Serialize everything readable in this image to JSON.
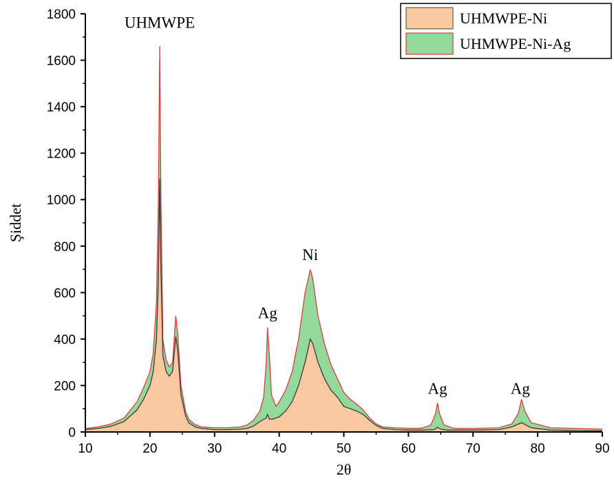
{
  "chart_data": {
    "type": "area",
    "xlabel": "2θ",
    "ylabel": "Şiddet",
    "xlim": [
      10,
      90
    ],
    "ylim": [
      0,
      1800
    ],
    "xticks": [
      10,
      20,
      30,
      40,
      50,
      60,
      70,
      80,
      90
    ],
    "yticks": [
      0,
      200,
      400,
      600,
      800,
      1000,
      1200,
      1400,
      1600,
      1800
    ],
    "legend_position": "top-right",
    "series": [
      {
        "name": "UHMWPE-Ni",
        "fill_color": "#f8c9a0",
        "line_color": "#3a3a3a",
        "x": [
          10,
          12,
          14,
          16,
          17,
          18,
          19,
          20,
          20.5,
          21,
          21.3,
          21.5,
          21.7,
          22,
          22.5,
          23,
          23.5,
          24,
          24.3,
          24.8,
          25.5,
          26,
          27,
          28,
          30,
          32,
          34,
          35,
          36,
          37,
          38,
          38.2,
          38.5,
          39,
          40,
          41,
          42,
          43,
          44,
          44.5,
          44.8,
          45.2,
          46,
          47,
          48,
          49,
          50,
          51,
          52,
          53,
          54,
          55,
          56,
          58,
          60,
          62,
          64,
          64.5,
          65,
          66,
          70,
          74,
          76,
          77.5,
          79,
          82,
          86,
          90
        ],
        "y": [
          10,
          15,
          25,
          45,
          70,
          95,
          140,
          200,
          260,
          400,
          650,
          1090,
          700,
          330,
          260,
          240,
          260,
          410,
          350,
          160,
          70,
          40,
          22,
          15,
          10,
          10,
          12,
          15,
          25,
          45,
          60,
          75,
          55,
          55,
          65,
          90,
          130,
          200,
          300,
          360,
          400,
          380,
          300,
          230,
          180,
          150,
          110,
          100,
          90,
          75,
          50,
          28,
          15,
          10,
          8,
          8,
          10,
          20,
          12,
          8,
          8,
          10,
          22,
          40,
          18,
          8,
          6,
          5
        ]
      },
      {
        "name": "UHMWPE-Ni-Ag",
        "fill_color": "#93d99c",
        "line_color": "#e03a3a",
        "x": [
          10,
          12,
          14,
          16,
          17,
          18,
          19,
          20,
          20.5,
          21,
          21.3,
          21.5,
          21.7,
          22,
          22.5,
          23,
          23.5,
          24,
          24.3,
          24.8,
          25.5,
          26,
          27,
          28,
          30,
          32,
          34,
          35,
          36,
          37,
          37.6,
          38,
          38.2,
          38.5,
          38.8,
          39.5,
          40,
          41,
          42,
          43,
          44,
          44.5,
          44.8,
          45.2,
          46,
          47,
          48,
          49,
          50,
          51,
          52,
          53,
          54,
          55,
          56,
          58,
          60,
          62,
          63.5,
          64.2,
          64.5,
          64.8,
          65.5,
          67,
          70,
          74,
          76,
          77,
          77.5,
          78,
          79,
          82,
          86,
          90
        ],
        "y": [
          15,
          22,
          35,
          60,
          95,
          130,
          190,
          260,
          340,
          560,
          1000,
          1660,
          1000,
          400,
          310,
          280,
          300,
          500,
          420,
          200,
          90,
          55,
          32,
          22,
          18,
          18,
          22,
          30,
          50,
          90,
          150,
          300,
          450,
          320,
          160,
          110,
          130,
          180,
          260,
          400,
          600,
          660,
          700,
          660,
          500,
          380,
          290,
          230,
          170,
          140,
          120,
          95,
          60,
          35,
          22,
          18,
          16,
          16,
          30,
          80,
          125,
          80,
          30,
          16,
          15,
          18,
          35,
          80,
          140,
          90,
          40,
          18,
          15,
          12
        ]
      }
    ],
    "annotations": [
      {
        "text": "UHMWPE",
        "x": 21.5,
        "y": 1740
      },
      {
        "text": "Ag",
        "x": 38.2,
        "y": 490
      },
      {
        "text": "Ni",
        "x": 44.8,
        "y": 740
      },
      {
        "text": "Ag",
        "x": 64.5,
        "y": 165
      },
      {
        "text": "Ag",
        "x": 77.3,
        "y": 165
      }
    ]
  }
}
